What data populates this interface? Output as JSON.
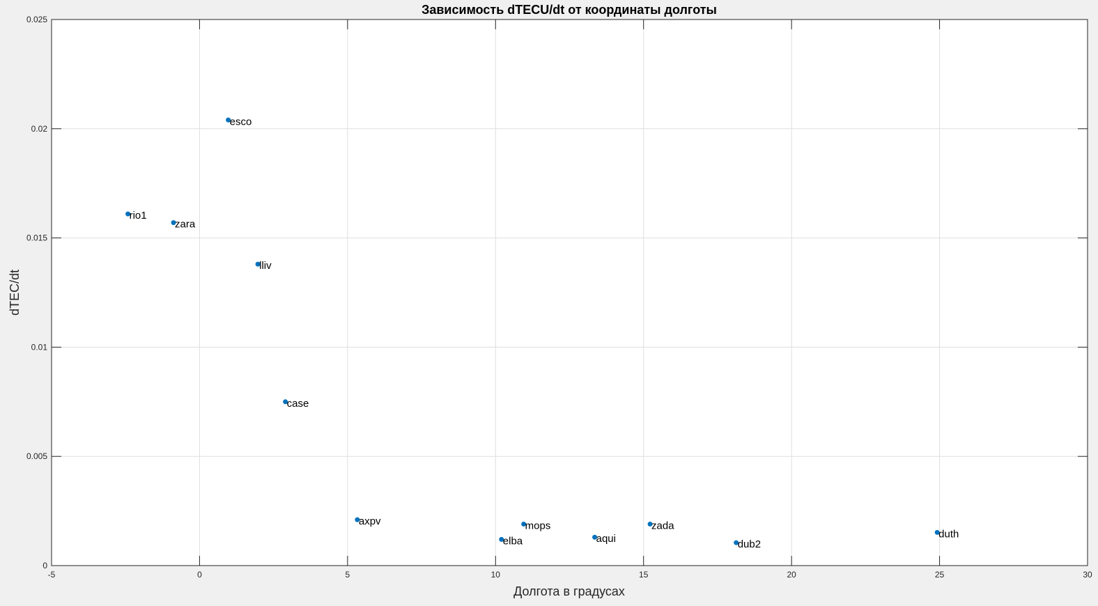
{
  "chart_data": {
    "type": "scatter",
    "title": "Зависимость dTECU/dt от координаты долготы",
    "xlabel": "Долгота в градусах",
    "ylabel": "dTEC/dt",
    "xlim": [
      -5,
      30
    ],
    "ylim": [
      0,
      0.025
    ],
    "xticks": [
      -5,
      0,
      5,
      10,
      15,
      20,
      25,
      30
    ],
    "xtick_labels": [
      "-5",
      "0",
      "5",
      "10",
      "15",
      "20",
      "25",
      "30"
    ],
    "yticks": [
      0,
      0.005,
      0.01,
      0.015,
      0.02,
      0.025
    ],
    "ytick_labels": [
      "0",
      "0.005",
      "0.01",
      "0.015",
      "0.02",
      "0.025"
    ],
    "grid": true,
    "marker_color": "#0072bd",
    "points": [
      {
        "label": "esco",
        "x": 0.97,
        "y": 0.0204
      },
      {
        "label": "rio1",
        "x": -2.42,
        "y": 0.0161
      },
      {
        "label": "zara",
        "x": -0.88,
        "y": 0.0157
      },
      {
        "label": "lliv",
        "x": 1.97,
        "y": 0.0138
      },
      {
        "label": "case",
        "x": 2.9,
        "y": 0.0075
      },
      {
        "label": "axpv",
        "x": 5.33,
        "y": 0.0021
      },
      {
        "label": "mops",
        "x": 10.95,
        "y": 0.0019
      },
      {
        "label": "elba",
        "x": 10.2,
        "y": 0.0012
      },
      {
        "label": "aqui",
        "x": 13.35,
        "y": 0.0013
      },
      {
        "label": "zada",
        "x": 15.22,
        "y": 0.0019
      },
      {
        "label": "dub2",
        "x": 18.13,
        "y": 0.00105
      },
      {
        "label": "duth",
        "x": 24.92,
        "y": 0.00152
      }
    ]
  }
}
